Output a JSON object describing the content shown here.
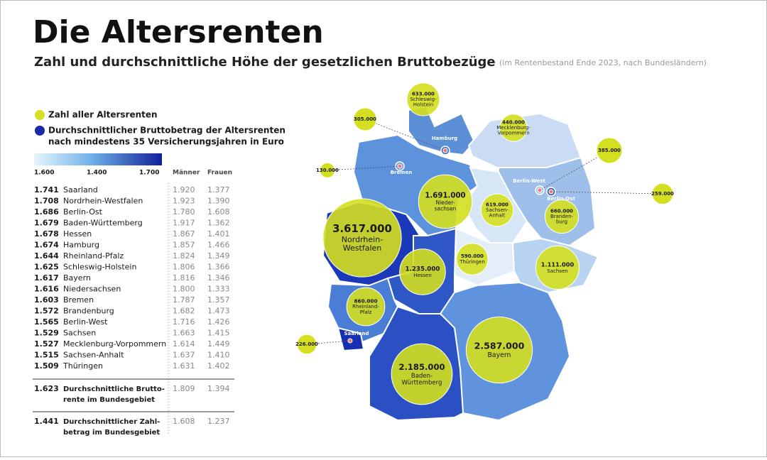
{
  "header": {
    "title": "Die Altersrenten",
    "subtitle": "Zahl und durchschnittliche Höhe der gesetzlichen Bruttobezüge",
    "note": "(im Rentenbestand Ende 2023, nach Bundesländern)"
  },
  "legend": {
    "count": "Zahl aller Altersrenten",
    "amount": [
      "Durchschnittlicher Bruttobetrag der Altersrenten",
      "nach mindestens 35 Versicherungsjahren in Euro"
    ],
    "scale": [
      "1.600",
      "1.400",
      "1.700"
    ],
    "columns": [
      "Männer",
      "Frauen"
    ]
  },
  "table": {
    "rows": [
      [
        "1.741",
        "Saarland",
        "1.920",
        "1.377"
      ],
      [
        "1.708",
        "Nordrhein-Westfalen",
        "1.923",
        "1.390"
      ],
      [
        "1.686",
        "Berlin-Ost",
        "1.780",
        "1.608"
      ],
      [
        "1.679",
        "Baden-Württemberg",
        "1.917",
        "1.362"
      ],
      [
        "1.678",
        "Hessen",
        "1.867",
        "1.401"
      ],
      [
        "1.674",
        "Hamburg",
        "1.857",
        "1.466"
      ],
      [
        "1.644",
        "Rheinland-Pfalz",
        "1.824",
        "1.349"
      ],
      [
        "1.625",
        "Schleswig-Holstein",
        "1.806",
        "1.366"
      ],
      [
        "1.617",
        "Bayern",
        "1.816",
        "1.346"
      ],
      [
        "1.616",
        "Niedersachsen",
        "1.800",
        "1.333"
      ],
      [
        "1.603",
        "Bremen",
        "1.787",
        "1.357"
      ],
      [
        "1.572",
        "Brandenburg",
        "1.682",
        "1.473"
      ],
      [
        "1.565",
        "Berlin-West",
        "1.716",
        "1.426"
      ],
      [
        "1.529",
        "Sachsen",
        "1.663",
        "1.415"
      ],
      [
        "1.527",
        "Mecklenburg-Vorpommern",
        "1.614",
        "1.449"
      ],
      [
        "1.515",
        "Sachsen-Anhalt",
        "1.637",
        "1.410"
      ],
      [
        "1.509",
        "Thüringen",
        "1.631",
        "1.402"
      ]
    ],
    "summary": [
      [
        "1.623",
        [
          "Durchschnittliche Brutto-",
          "rente im Bundesgebiet"
        ],
        "1.809",
        "1.394"
      ],
      [
        "1.441",
        [
          "Durchschnittlicher Zahl-",
          "betrag im Bundesgebiet"
        ],
        "1.608",
        "1.237"
      ]
    ]
  },
  "map": {
    "states": [
      {
        "lines": [
          "Schleswig-",
          "Holstein"
        ],
        "count": 633000,
        "count_label": "633.000",
        "color": "#5b8fd6"
      },
      {
        "place": "Hamburg",
        "count": 305000,
        "count_label": "305.000",
        "color": "#3f73cf"
      },
      {
        "lines": [
          "Mecklenburg-",
          "Vorpommern"
        ],
        "count": 440000,
        "count_label": "440.000",
        "color": "#c9dcf3"
      },
      {
        "place": "Berlin-West",
        "count": 385000,
        "count_label": "385.000",
        "color": "#a9c8ee"
      },
      {
        "place": "Bremen",
        "count": 130000,
        "count_label": "130.000",
        "color": "#6c9be0"
      },
      {
        "lines": [
          "Nieder-",
          "sachsen"
        ],
        "count": 1691000,
        "count_label": "1.691.000",
        "color": "#5d92dd"
      },
      {
        "lines": [
          "Sachsen-",
          "Anhalt"
        ],
        "count": 619000,
        "count_label": "619.000",
        "color": "#d6e6f7"
      },
      {
        "place": "Berlin-Ost",
        "count": 259000,
        "count_label": "259.000",
        "color": "#3158c8"
      },
      {
        "lines": [
          "Branden-",
          "burg"
        ],
        "count": 660000,
        "count_label": "660.000",
        "color": "#9dbfe9"
      },
      {
        "lines": [
          "Nordrhein-",
          "Westfalen"
        ],
        "count": 3617000,
        "count_label": "3.617.000",
        "color": "#1a38b8"
      },
      {
        "lines": [
          "Thüringen"
        ],
        "count": 590000,
        "count_label": "590.000",
        "color": "#e3eef9"
      },
      {
        "lines": [
          "Sachsen"
        ],
        "count": 1111000,
        "count_label": "1.111.000",
        "color": "#b8d2f1"
      },
      {
        "lines": [
          "Hessen"
        ],
        "count": 1235000,
        "count_label": "1.235.000",
        "color": "#2f57c6"
      },
      {
        "lines": [
          "Rheinland-",
          "Pfalz"
        ],
        "count": 860000,
        "count_label": "860.000",
        "color": "#4a7ed6"
      },
      {
        "place": "Saarland",
        "count": 226000,
        "count_label": "226.000",
        "color": "#1530b0"
      },
      {
        "lines": [
          "Bayern"
        ],
        "count": 2587000,
        "count_label": "2.587.000",
        "color": "#5f93dd"
      },
      {
        "lines": [
          "Baden-",
          "Württemberg"
        ],
        "count": 2185000,
        "count_label": "2.185.000",
        "color": "#2a50c3"
      }
    ]
  }
}
